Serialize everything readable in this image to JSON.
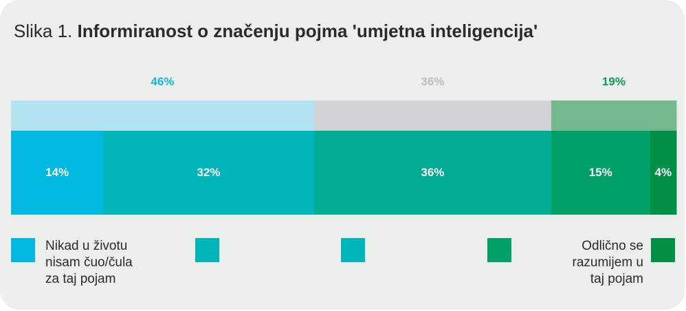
{
  "title": {
    "prefix": "Slika 1.",
    "main": "Informiranost o značenju pojma 'umjetna inteligencija'"
  },
  "legend_labels": {
    "left": "Nikad u životu\nnisam čuo/čula\nza taj pojam",
    "right": "Odlično se\nrazumijem u\ntaj pojam"
  },
  "chart_data": {
    "type": "bar",
    "orientation": "horizontal-stacked",
    "groups": [
      {
        "value": 46,
        "label": "46%",
        "color": "#b3e2f2",
        "label_color": "#19b5d6"
      },
      {
        "value": 36,
        "label": "36%",
        "color": "#d1d3d6",
        "label_color": "#b9bcbf"
      },
      {
        "value": 19,
        "label": "19%",
        "color": "#76b88d",
        "label_color": "#0d9a53"
      }
    ],
    "segments": [
      {
        "value": 14,
        "label": "14%",
        "color": "#00b8e0"
      },
      {
        "value": 32,
        "label": "32%",
        "color": "#00b5b9"
      },
      {
        "value": 36,
        "label": "36%",
        "color": "#00ac94"
      },
      {
        "value": 15,
        "label": "15%",
        "color": "#009f66"
      },
      {
        "value": 4,
        "label": "4%",
        "color": "#008f45"
      }
    ],
    "legend": [
      {
        "color": "#00b8e0"
      },
      {
        "color": "#00b5b9"
      },
      {
        "color": "#00b5b9"
      },
      {
        "color": "#00a066"
      },
      {
        "color": "#008f45"
      }
    ]
  }
}
